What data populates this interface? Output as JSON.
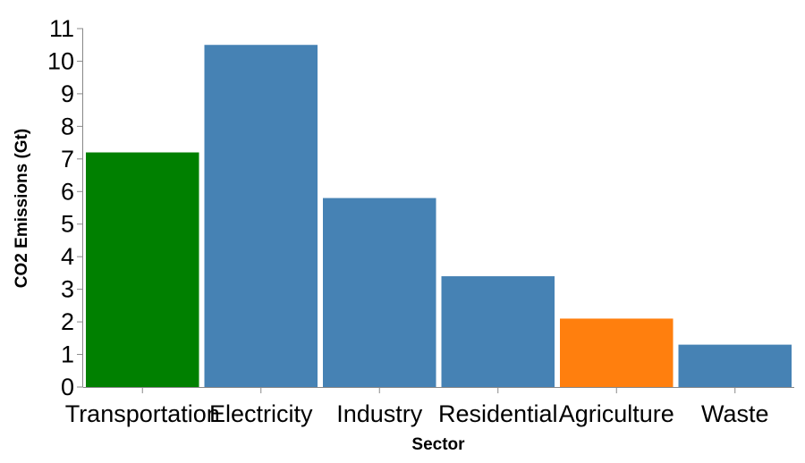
{
  "chart_data": {
    "type": "bar",
    "categories": [
      "Transportation",
      "Electricity",
      "Industry",
      "Residential",
      "Agriculture",
      "Waste"
    ],
    "values": [
      7.2,
      10.5,
      5.8,
      3.4,
      2.1,
      1.3
    ],
    "colors": [
      "#008000",
      "#4682b4",
      "#4682b4",
      "#4682b4",
      "#ff7f0e",
      "#4682b4"
    ],
    "xlabel": "Sector",
    "ylabel": "CO2 Emissions (Gt)",
    "ylim": [
      0,
      11
    ],
    "yticks": [
      0,
      1,
      2,
      3,
      4,
      5,
      6,
      7,
      8,
      9,
      10,
      11
    ],
    "grid": false,
    "legend": "none"
  }
}
